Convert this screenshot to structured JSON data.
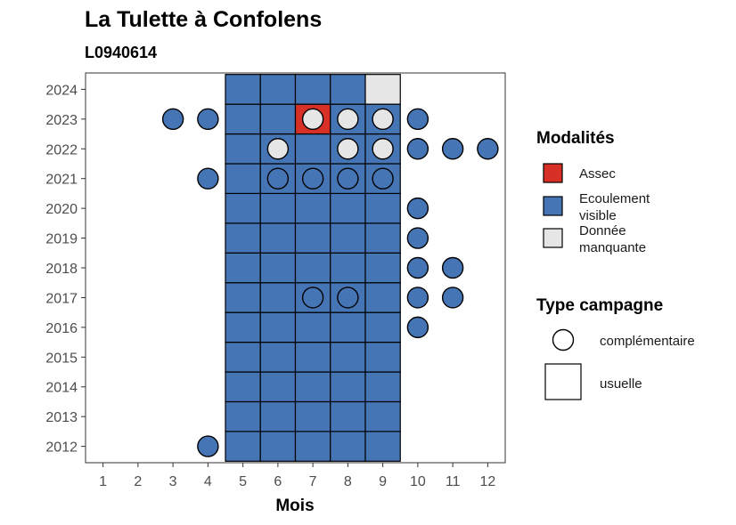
{
  "chart_data": {
    "type": "heatmap",
    "title": "La Tulette à Confolens",
    "subtitle": "L0940614",
    "xlabel": "Mois",
    "ylabel": "",
    "x_ticks": [
      1,
      2,
      3,
      4,
      5,
      6,
      7,
      8,
      9,
      10,
      11,
      12
    ],
    "y_ticks": [
      2012,
      2013,
      2014,
      2015,
      2016,
      2017,
      2018,
      2019,
      2020,
      2021,
      2022,
      2023,
      2024
    ],
    "xlim": [
      0.5,
      12.5
    ],
    "ylim": [
      2011.45,
      2024.55
    ],
    "grid": false,
    "legend_position": "right",
    "modalite_colors": {
      "Assec": "#d73027",
      "Ecoulement visible": "#4575b4",
      "Donnée manquante": "#e6e6e6"
    },
    "legend": {
      "modalites_title": "Modalités",
      "modalites": [
        {
          "key": "Assec",
          "lines": [
            "Assec"
          ]
        },
        {
          "key": "Ecoulement visible",
          "lines": [
            "Ecoulement",
            "visible"
          ]
        },
        {
          "key": "Donnée manquante",
          "lines": [
            "Donnée",
            "manquante"
          ]
        }
      ],
      "type_title": "Type campagne",
      "types": [
        {
          "key": "complémentaire",
          "label": "complémentaire",
          "shape": "circle"
        },
        {
          "key": "usuelle",
          "label": "usuelle",
          "shape": "square"
        }
      ]
    },
    "usuelle": [
      {
        "year": 2012,
        "month": 5,
        "modalite": "Ecoulement visible"
      },
      {
        "year": 2012,
        "month": 6,
        "modalite": "Ecoulement visible"
      },
      {
        "year": 2012,
        "month": 7,
        "modalite": "Ecoulement visible"
      },
      {
        "year": 2012,
        "month": 8,
        "modalite": "Ecoulement visible"
      },
      {
        "year": 2012,
        "month": 9,
        "modalite": "Ecoulement visible"
      },
      {
        "year": 2013,
        "month": 5,
        "modalite": "Ecoulement visible"
      },
      {
        "year": 2013,
        "month": 6,
        "modalite": "Ecoulement visible"
      },
      {
        "year": 2013,
        "month": 7,
        "modalite": "Ecoulement visible"
      },
      {
        "year": 2013,
        "month": 8,
        "modalite": "Ecoulement visible"
      },
      {
        "year": 2013,
        "month": 9,
        "modalite": "Ecoulement visible"
      },
      {
        "year": 2014,
        "month": 5,
        "modalite": "Ecoulement visible"
      },
      {
        "year": 2014,
        "month": 6,
        "modalite": "Ecoulement visible"
      },
      {
        "year": 2014,
        "month": 7,
        "modalite": "Ecoulement visible"
      },
      {
        "year": 2014,
        "month": 8,
        "modalite": "Ecoulement visible"
      },
      {
        "year": 2014,
        "month": 9,
        "modalite": "Ecoulement visible"
      },
      {
        "year": 2015,
        "month": 5,
        "modalite": "Ecoulement visible"
      },
      {
        "year": 2015,
        "month": 6,
        "modalite": "Ecoulement visible"
      },
      {
        "year": 2015,
        "month": 7,
        "modalite": "Ecoulement visible"
      },
      {
        "year": 2015,
        "month": 8,
        "modalite": "Ecoulement visible"
      },
      {
        "year": 2015,
        "month": 9,
        "modalite": "Ecoulement visible"
      },
      {
        "year": 2016,
        "month": 5,
        "modalite": "Ecoulement visible"
      },
      {
        "year": 2016,
        "month": 6,
        "modalite": "Ecoulement visible"
      },
      {
        "year": 2016,
        "month": 7,
        "modalite": "Ecoulement visible"
      },
      {
        "year": 2016,
        "month": 8,
        "modalite": "Ecoulement visible"
      },
      {
        "year": 2016,
        "month": 9,
        "modalite": "Ecoulement visible"
      },
      {
        "year": 2017,
        "month": 5,
        "modalite": "Ecoulement visible"
      },
      {
        "year": 2017,
        "month": 6,
        "modalite": "Ecoulement visible"
      },
      {
        "year": 2017,
        "month": 7,
        "modalite": "Ecoulement visible"
      },
      {
        "year": 2017,
        "month": 8,
        "modalite": "Ecoulement visible"
      },
      {
        "year": 2017,
        "month": 9,
        "modalite": "Ecoulement visible"
      },
      {
        "year": 2018,
        "month": 5,
        "modalite": "Ecoulement visible"
      },
      {
        "year": 2018,
        "month": 6,
        "modalite": "Ecoulement visible"
      },
      {
        "year": 2018,
        "month": 7,
        "modalite": "Ecoulement visible"
      },
      {
        "year": 2018,
        "month": 8,
        "modalite": "Ecoulement visible"
      },
      {
        "year": 2018,
        "month": 9,
        "modalite": "Ecoulement visible"
      },
      {
        "year": 2019,
        "month": 5,
        "modalite": "Ecoulement visible"
      },
      {
        "year": 2019,
        "month": 6,
        "modalite": "Ecoulement visible"
      },
      {
        "year": 2019,
        "month": 7,
        "modalite": "Ecoulement visible"
      },
      {
        "year": 2019,
        "month": 8,
        "modalite": "Ecoulement visible"
      },
      {
        "year": 2019,
        "month": 9,
        "modalite": "Ecoulement visible"
      },
      {
        "year": 2020,
        "month": 5,
        "modalite": "Ecoulement visible"
      },
      {
        "year": 2020,
        "month": 6,
        "modalite": "Ecoulement visible"
      },
      {
        "year": 2020,
        "month": 7,
        "modalite": "Ecoulement visible"
      },
      {
        "year": 2020,
        "month": 8,
        "modalite": "Ecoulement visible"
      },
      {
        "year": 2020,
        "month": 9,
        "modalite": "Ecoulement visible"
      },
      {
        "year": 2021,
        "month": 5,
        "modalite": "Ecoulement visible"
      },
      {
        "year": 2021,
        "month": 6,
        "modalite": "Ecoulement visible"
      },
      {
        "year": 2021,
        "month": 7,
        "modalite": "Ecoulement visible"
      },
      {
        "year": 2021,
        "month": 8,
        "modalite": "Ecoulement visible"
      },
      {
        "year": 2021,
        "month": 9,
        "modalite": "Ecoulement visible"
      },
      {
        "year": 2022,
        "month": 5,
        "modalite": "Ecoulement visible"
      },
      {
        "year": 2022,
        "month": 6,
        "modalite": "Ecoulement visible"
      },
      {
        "year": 2022,
        "month": 7,
        "modalite": "Ecoulement visible"
      },
      {
        "year": 2022,
        "month": 8,
        "modalite": "Ecoulement visible"
      },
      {
        "year": 2022,
        "month": 9,
        "modalite": "Ecoulement visible"
      },
      {
        "year": 2023,
        "month": 5,
        "modalite": "Ecoulement visible"
      },
      {
        "year": 2023,
        "month": 6,
        "modalite": "Ecoulement visible"
      },
      {
        "year": 2023,
        "month": 7,
        "modalite": "Assec"
      },
      {
        "year": 2023,
        "month": 8,
        "modalite": "Ecoulement visible"
      },
      {
        "year": 2023,
        "month": 9,
        "modalite": "Ecoulement visible"
      },
      {
        "year": 2024,
        "month": 5,
        "modalite": "Ecoulement visible"
      },
      {
        "year": 2024,
        "month": 6,
        "modalite": "Ecoulement visible"
      },
      {
        "year": 2024,
        "month": 7,
        "modalite": "Ecoulement visible"
      },
      {
        "year": 2024,
        "month": 8,
        "modalite": "Ecoulement visible"
      },
      {
        "year": 2024,
        "month": 9,
        "modalite": "Donnée manquante"
      }
    ],
    "complementaire": [
      {
        "year": 2012,
        "month": 4,
        "modalite": "Ecoulement visible"
      },
      {
        "year": 2016,
        "month": 10,
        "modalite": "Ecoulement visible"
      },
      {
        "year": 2017,
        "month": 7,
        "modalite": "Ecoulement visible"
      },
      {
        "year": 2017,
        "month": 8,
        "modalite": "Ecoulement visible"
      },
      {
        "year": 2017,
        "month": 10,
        "modalite": "Ecoulement visible"
      },
      {
        "year": 2017,
        "month": 11,
        "modalite": "Ecoulement visible"
      },
      {
        "year": 2018,
        "month": 10,
        "modalite": "Ecoulement visible"
      },
      {
        "year": 2018,
        "month": 11,
        "modalite": "Ecoulement visible"
      },
      {
        "year": 2019,
        "month": 10,
        "modalite": "Ecoulement visible"
      },
      {
        "year": 2020,
        "month": 10,
        "modalite": "Ecoulement visible"
      },
      {
        "year": 2021,
        "month": 4,
        "modalite": "Ecoulement visible"
      },
      {
        "year": 2021,
        "month": 6,
        "modalite": "Ecoulement visible"
      },
      {
        "year": 2021,
        "month": 7,
        "modalite": "Ecoulement visible"
      },
      {
        "year": 2021,
        "month": 8,
        "modalite": "Ecoulement visible"
      },
      {
        "year": 2021,
        "month": 9,
        "modalite": "Ecoulement visible"
      },
      {
        "year": 2022,
        "month": 6,
        "modalite": "Donnée manquante"
      },
      {
        "year": 2022,
        "month": 8,
        "modalite": "Donnée manquante"
      },
      {
        "year": 2022,
        "month": 9,
        "modalite": "Donnée manquante"
      },
      {
        "year": 2022,
        "month": 10,
        "modalite": "Ecoulement visible"
      },
      {
        "year": 2022,
        "month": 11,
        "modalite": "Ecoulement visible"
      },
      {
        "year": 2022,
        "month": 12,
        "modalite": "Ecoulement visible"
      },
      {
        "year": 2023,
        "month": 3,
        "modalite": "Ecoulement visible"
      },
      {
        "year": 2023,
        "month": 4,
        "modalite": "Ecoulement visible"
      },
      {
        "year": 2023,
        "month": 7,
        "modalite": "Donnée manquante"
      },
      {
        "year": 2023,
        "month": 8,
        "modalite": "Donnée manquante"
      },
      {
        "year": 2023,
        "month": 9,
        "modalite": "Donnée manquante"
      },
      {
        "year": 2023,
        "month": 10,
        "modalite": "Ecoulement visible"
      }
    ]
  }
}
